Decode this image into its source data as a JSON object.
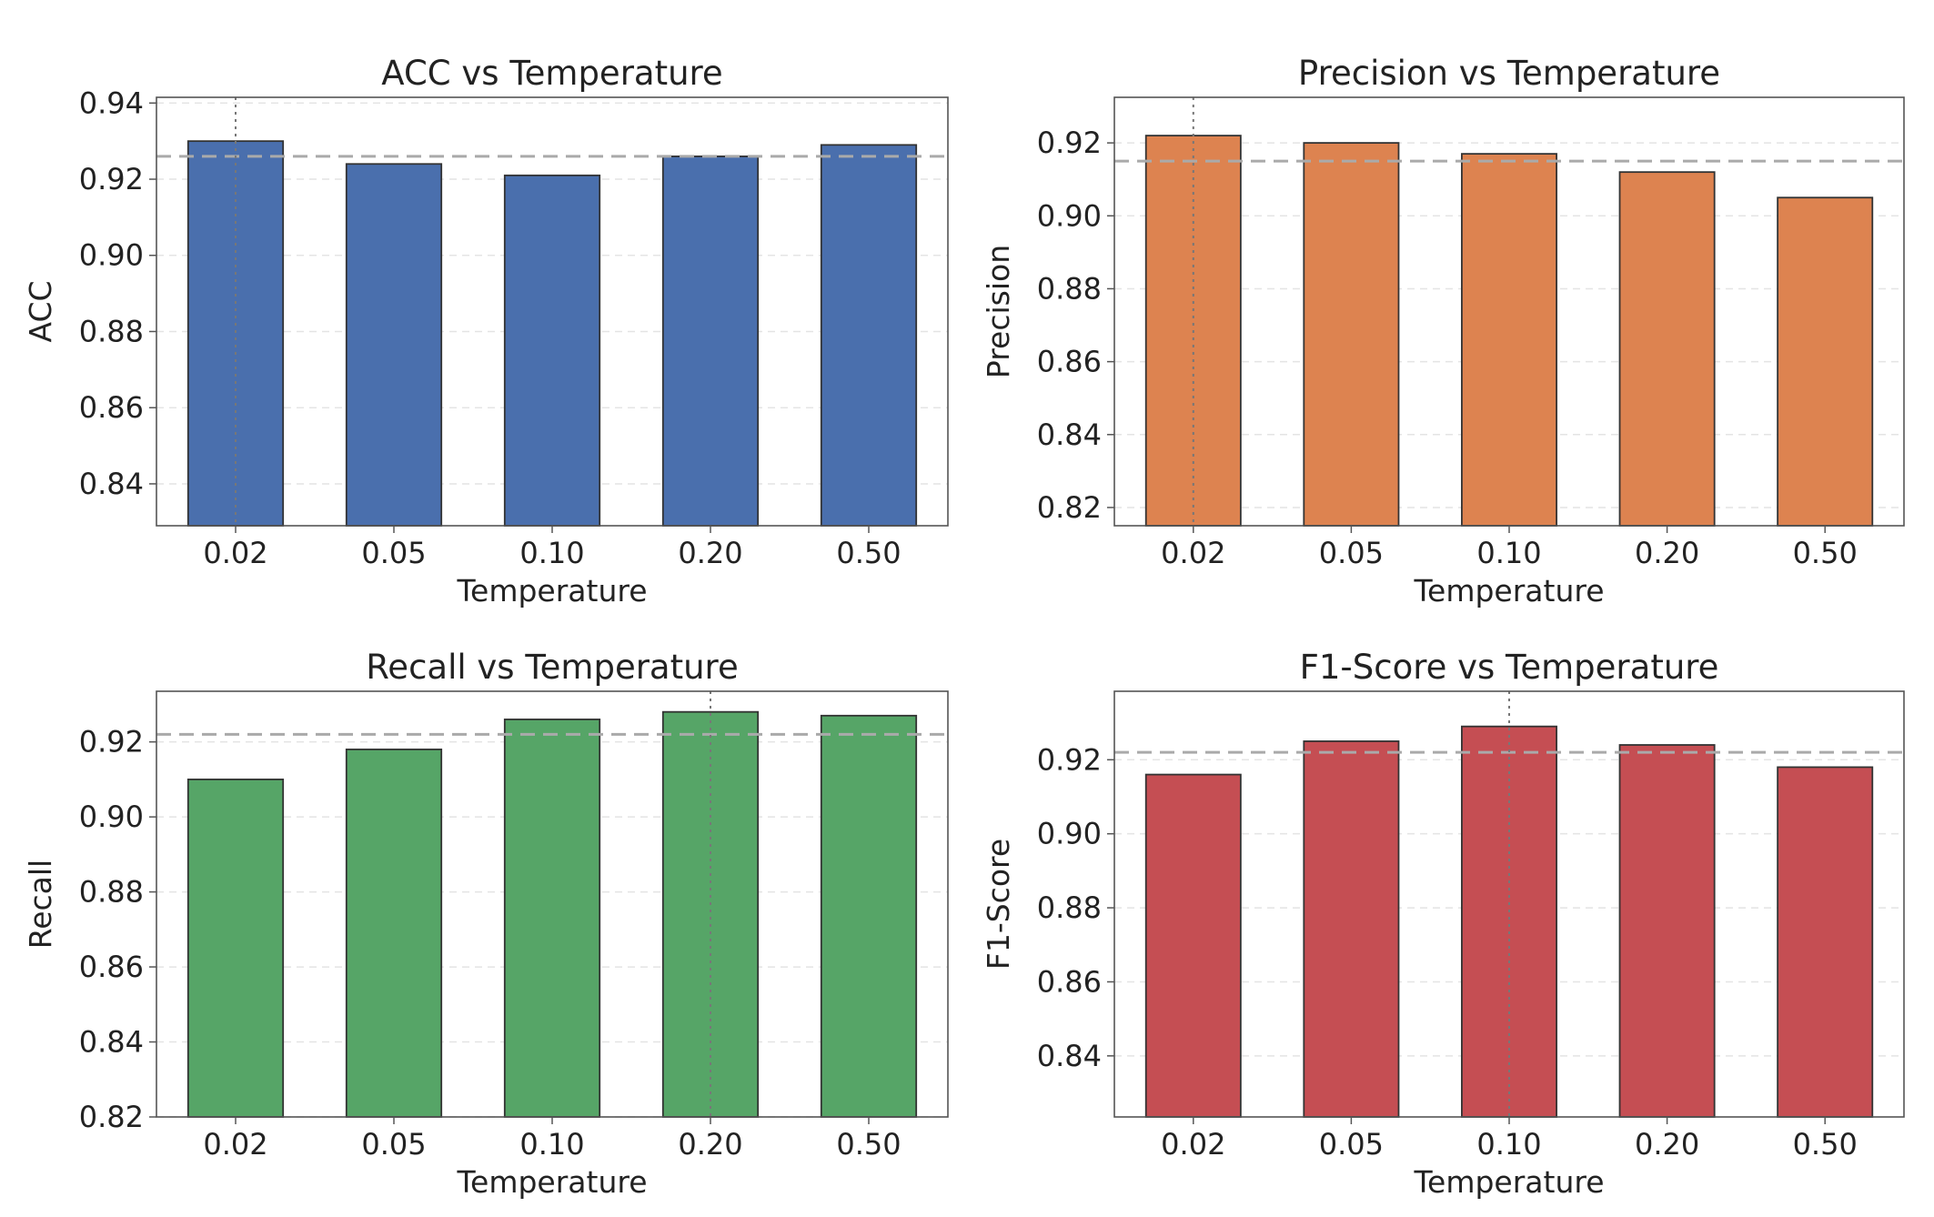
{
  "chart_data": [
    {
      "type": "bar",
      "title": "ACC vs Temperature",
      "xlabel": "Temperature",
      "ylabel": "ACC",
      "categories": [
        "0.02",
        "0.05",
        "0.10",
        "0.20",
        "0.50"
      ],
      "values": [
        0.93,
        0.924,
        0.921,
        0.926,
        0.929
      ],
      "mean": 0.926,
      "best_category": "0.02",
      "ylim": [
        0.829,
        0.9415
      ],
      "yticks": [
        0.84,
        0.86,
        0.88,
        0.9,
        0.92,
        0.94
      ],
      "ytick_labels": [
        "0.84",
        "0.86",
        "0.88",
        "0.90",
        "0.92",
        "0.94"
      ],
      "grid": true,
      "color": "#4a6fad"
    },
    {
      "type": "bar",
      "title": "Precision vs Temperature",
      "xlabel": "Temperature",
      "ylabel": "Precision",
      "categories": [
        "0.02",
        "0.05",
        "0.10",
        "0.20",
        "0.50"
      ],
      "values": [
        0.922,
        0.92,
        0.917,
        0.912,
        0.905
      ],
      "mean": 0.915,
      "best_category": "0.02",
      "ylim": [
        0.815,
        0.9325
      ],
      "yticks": [
        0.82,
        0.84,
        0.86,
        0.88,
        0.9,
        0.92
      ],
      "ytick_labels": [
        "0.82",
        "0.84",
        "0.86",
        "0.88",
        "0.90",
        "0.92"
      ],
      "grid": true,
      "color": "#dd8350"
    },
    {
      "type": "bar",
      "title": "Recall vs Temperature",
      "xlabel": "Temperature",
      "ylabel": "Recall",
      "categories": [
        "0.02",
        "0.05",
        "0.10",
        "0.20",
        "0.50"
      ],
      "values": [
        0.91,
        0.918,
        0.926,
        0.928,
        0.927
      ],
      "mean": 0.922,
      "best_category": "0.20",
      "ylim": [
        0.82,
        0.9335
      ],
      "yticks": [
        0.82,
        0.84,
        0.86,
        0.88,
        0.9,
        0.92
      ],
      "ytick_labels": [
        "0.82",
        "0.84",
        "0.86",
        "0.88",
        "0.90",
        "0.92"
      ],
      "grid": true,
      "color": "#56a567"
    },
    {
      "type": "bar",
      "title": "F1-Score vs Temperature",
      "xlabel": "Temperature",
      "ylabel": "F1-Score",
      "categories": [
        "0.02",
        "0.05",
        "0.10",
        "0.20",
        "0.50"
      ],
      "values": [
        0.916,
        0.925,
        0.929,
        0.924,
        0.918
      ],
      "mean": 0.922,
      "best_category": "0.10",
      "ylim": [
        0.8235,
        0.9385
      ],
      "yticks": [
        0.84,
        0.86,
        0.88,
        0.9,
        0.92
      ],
      "ytick_labels": [
        "0.84",
        "0.86",
        "0.88",
        "0.90",
        "0.92"
      ],
      "grid": true,
      "color": "#c54e53"
    }
  ],
  "colors": {
    "mean_line": "#aaaaaa",
    "best_line": "#777777",
    "grid": "#e4e4e4",
    "axes": "#555555",
    "bar_edge": "#333333"
  }
}
